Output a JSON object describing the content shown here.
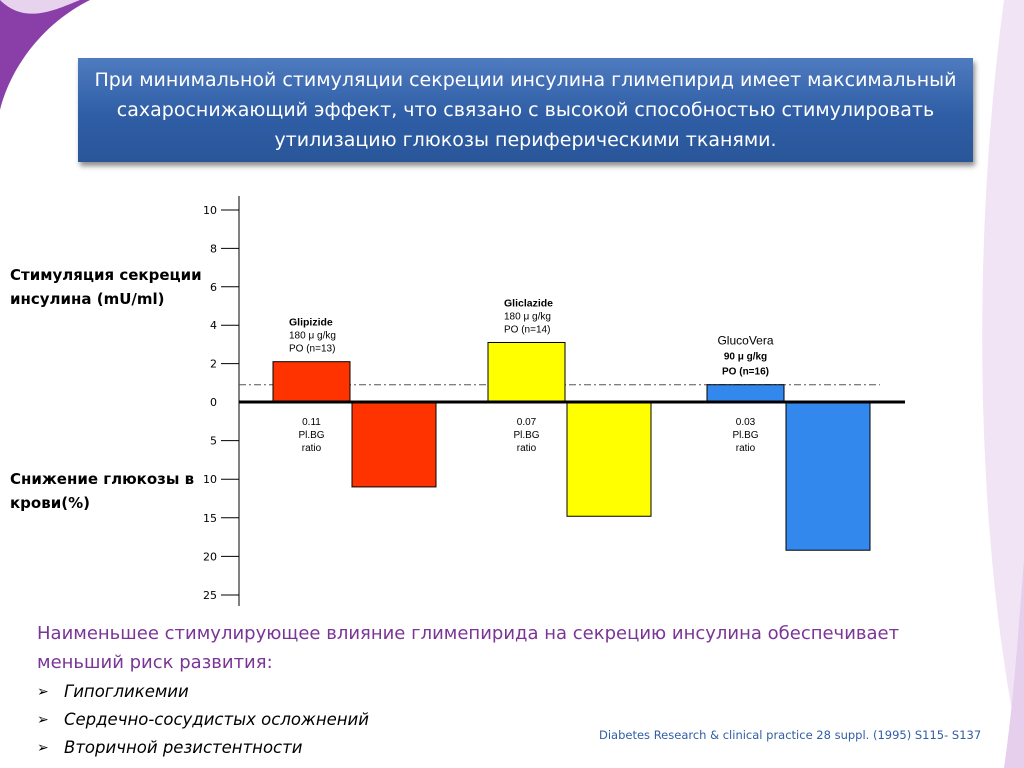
{
  "slide": {
    "title": "При минимальной стимуляции секреции инсулина глимепирид имеет максимальный сахароснижающий эффект, что связано с высокой способностью стимулировать утилизацию глюкозы периферическими тканями.",
    "conclusion": "Наименьшее стимулирующее влияние  глимепирида на секрецию инсулина обеспечивает меньший риск развития:",
    "bullets": [
      {
        "marker": "➢",
        "text": "Гипогликемии"
      },
      {
        "marker": "➢",
        "text": "Сердечно-сосудистых осложнений"
      },
      {
        "marker": "➢",
        "text": "Вторичной резистентности"
      }
    ],
    "citation": "Diabetes Research & clinical practice 28 suppl. (1995) S115- S137"
  },
  "chart_data": {
    "type": "bar",
    "upper_axis_label": "Стимуляция секреции инсулина (mU/ml)",
    "lower_axis_label": "Снижение глюкозы в крови(%)",
    "upper_axis": {
      "ticks": [
        "10",
        "8",
        "6",
        "4",
        "2",
        "0"
      ],
      "range": [
        0,
        10
      ]
    },
    "lower_axis": {
      "ticks": [
        "5",
        "10",
        "15",
        "20",
        "25"
      ],
      "range": [
        0,
        25
      ]
    },
    "reference_line_value": 0.9,
    "groups": [
      {
        "name": "Glipizide",
        "label_lines": [
          "180 μ g/kg",
          "PO (n=13)"
        ],
        "insulin_stimulation": 2.1,
        "glucose_decrease": 11,
        "ratio_lines": [
          "0.11",
          "Pl.BG",
          "ratio"
        ],
        "color": "#ff3300"
      },
      {
        "name": "Gliclazide",
        "label_lines": [
          "180 μ g/kg",
          "PO (n=14)"
        ],
        "insulin_stimulation": 3.1,
        "glucose_decrease": 14.8,
        "ratio_lines": [
          "0.07",
          "Pl.BG",
          "ratio"
        ],
        "color": "#ffff00"
      },
      {
        "name": "GlucoVera",
        "label_lines": [
          "90 μ g/kg",
          "PO (n=16)"
        ],
        "insulin_stimulation": 0.9,
        "glucose_decrease": 19.2,
        "ratio_lines": [
          "0.03",
          "Pl.BG",
          "ratio"
        ],
        "color": "#3388ee"
      }
    ]
  },
  "colors": {
    "title_bg": "#2f5ea6",
    "decor": "#8a3fa8",
    "conclusion_text": "#7a3596",
    "citation_text": "#2f5ea6"
  }
}
